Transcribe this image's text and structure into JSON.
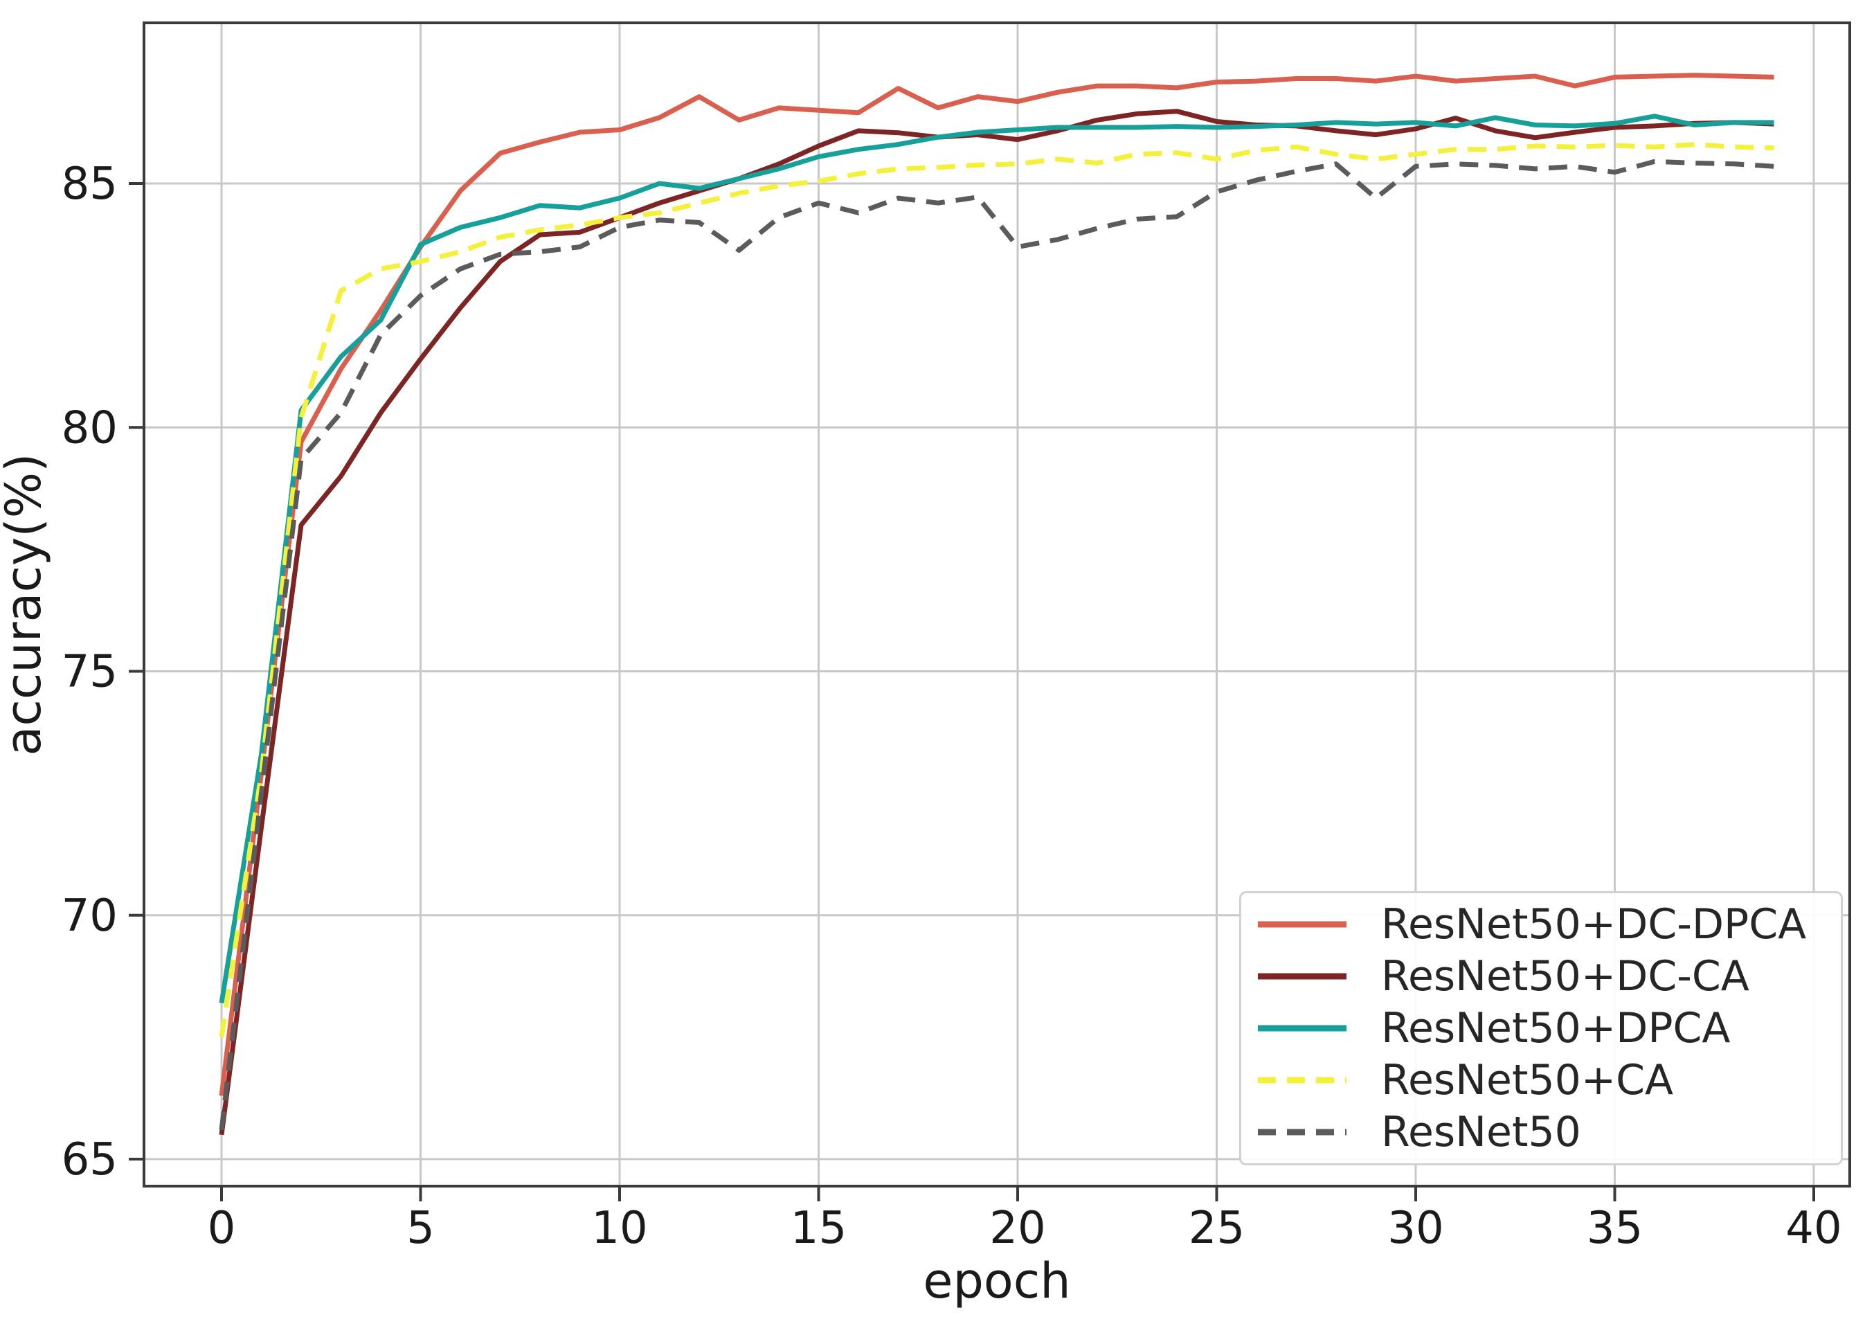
{
  "chart_data": {
    "type": "line",
    "title": "",
    "xlabel": "epoch",
    "ylabel": "accuracy(%)",
    "xlim": [
      -2,
      41
    ],
    "ylim": [
      64.4,
      88.3
    ],
    "x_ticks": [
      0,
      5,
      10,
      15,
      20,
      25,
      30,
      35,
      40
    ],
    "y_ticks": [
      65,
      70,
      75,
      80,
      85
    ],
    "grid": true,
    "grid_color": "#c8c8c8",
    "spine_color": "#3a3a3a",
    "text_color": "#1a1a1a",
    "legend_position": "lower right",
    "x": [
      0,
      1,
      2,
      3,
      4,
      5,
      6,
      7,
      8,
      9,
      10,
      11,
      12,
      13,
      14,
      15,
      16,
      17,
      18,
      19,
      20,
      21,
      22,
      23,
      24,
      25,
      26,
      27,
      28,
      29,
      30,
      31,
      32,
      33,
      34,
      35,
      36,
      37,
      38,
      39
    ],
    "series": [
      {
        "name": "ResNet50+DC-DPCA",
        "color": "#d9604f",
        "style": "solid",
        "values": [
          66.3,
          72.9,
          79.7,
          81.2,
          82.4,
          83.7,
          84.85,
          85.62,
          85.85,
          86.05,
          86.1,
          86.35,
          86.78,
          86.3,
          86.55,
          86.5,
          86.45,
          86.95,
          86.55,
          86.78,
          86.68,
          86.87,
          87.0,
          87.0,
          86.96,
          87.08,
          87.1,
          87.15,
          87.15,
          87.1,
          87.2,
          87.1,
          87.15,
          87.2,
          87.0,
          87.18,
          87.2,
          87.22,
          87.2,
          87.18
        ]
      },
      {
        "name": "ResNet50+DC-CA",
        "color": "#7d2524",
        "style": "solid",
        "values": [
          65.5,
          71.8,
          78.0,
          79.0,
          80.3,
          81.4,
          82.45,
          83.4,
          83.95,
          84.0,
          84.3,
          84.6,
          84.85,
          85.1,
          85.4,
          85.77,
          86.08,
          86.04,
          85.95,
          86.0,
          85.9,
          86.08,
          86.3,
          86.43,
          86.48,
          86.27,
          86.2,
          86.18,
          86.08,
          86.0,
          86.12,
          86.34,
          86.08,
          85.94,
          86.05,
          86.15,
          86.18,
          86.23,
          86.25,
          86.22
        ]
      },
      {
        "name": "ResNet50+DPCA",
        "color": "#17a09a",
        "style": "solid",
        "values": [
          68.2,
          73.3,
          80.35,
          81.45,
          82.2,
          83.75,
          84.1,
          84.3,
          84.55,
          84.5,
          84.7,
          85.0,
          84.9,
          85.1,
          85.3,
          85.55,
          85.7,
          85.8,
          85.95,
          86.05,
          86.1,
          86.15,
          86.15,
          86.15,
          86.17,
          86.15,
          86.17,
          86.2,
          86.25,
          86.22,
          86.25,
          86.18,
          86.35,
          86.2,
          86.18,
          86.23,
          86.38,
          86.2,
          86.25,
          86.25
        ]
      },
      {
        "name": "ResNet50+CA",
        "color": "#f3f13b",
        "style": "dashed",
        "values": [
          67.5,
          72.9,
          80.2,
          82.8,
          83.25,
          83.4,
          83.6,
          83.9,
          84.05,
          84.15,
          84.3,
          84.4,
          84.6,
          84.8,
          84.95,
          85.05,
          85.2,
          85.3,
          85.33,
          85.38,
          85.4,
          85.5,
          85.42,
          85.6,
          85.63,
          85.5,
          85.68,
          85.75,
          85.6,
          85.5,
          85.6,
          85.7,
          85.7,
          85.77,
          85.75,
          85.78,
          85.75,
          85.8,
          85.75,
          85.73
        ]
      },
      {
        "name": "ResNet50",
        "color": "#5b5b5b",
        "style": "dashed",
        "values": [
          65.6,
          72.5,
          79.35,
          80.3,
          81.9,
          82.7,
          83.25,
          83.55,
          83.6,
          83.7,
          84.1,
          84.25,
          84.2,
          83.63,
          84.3,
          84.6,
          84.4,
          84.7,
          84.6,
          84.72,
          83.7,
          83.85,
          84.08,
          84.27,
          84.32,
          84.83,
          85.07,
          85.25,
          85.4,
          84.7,
          85.35,
          85.4,
          85.37,
          85.3,
          85.35,
          85.23,
          85.45,
          85.42,
          85.4,
          85.35
        ]
      }
    ]
  }
}
